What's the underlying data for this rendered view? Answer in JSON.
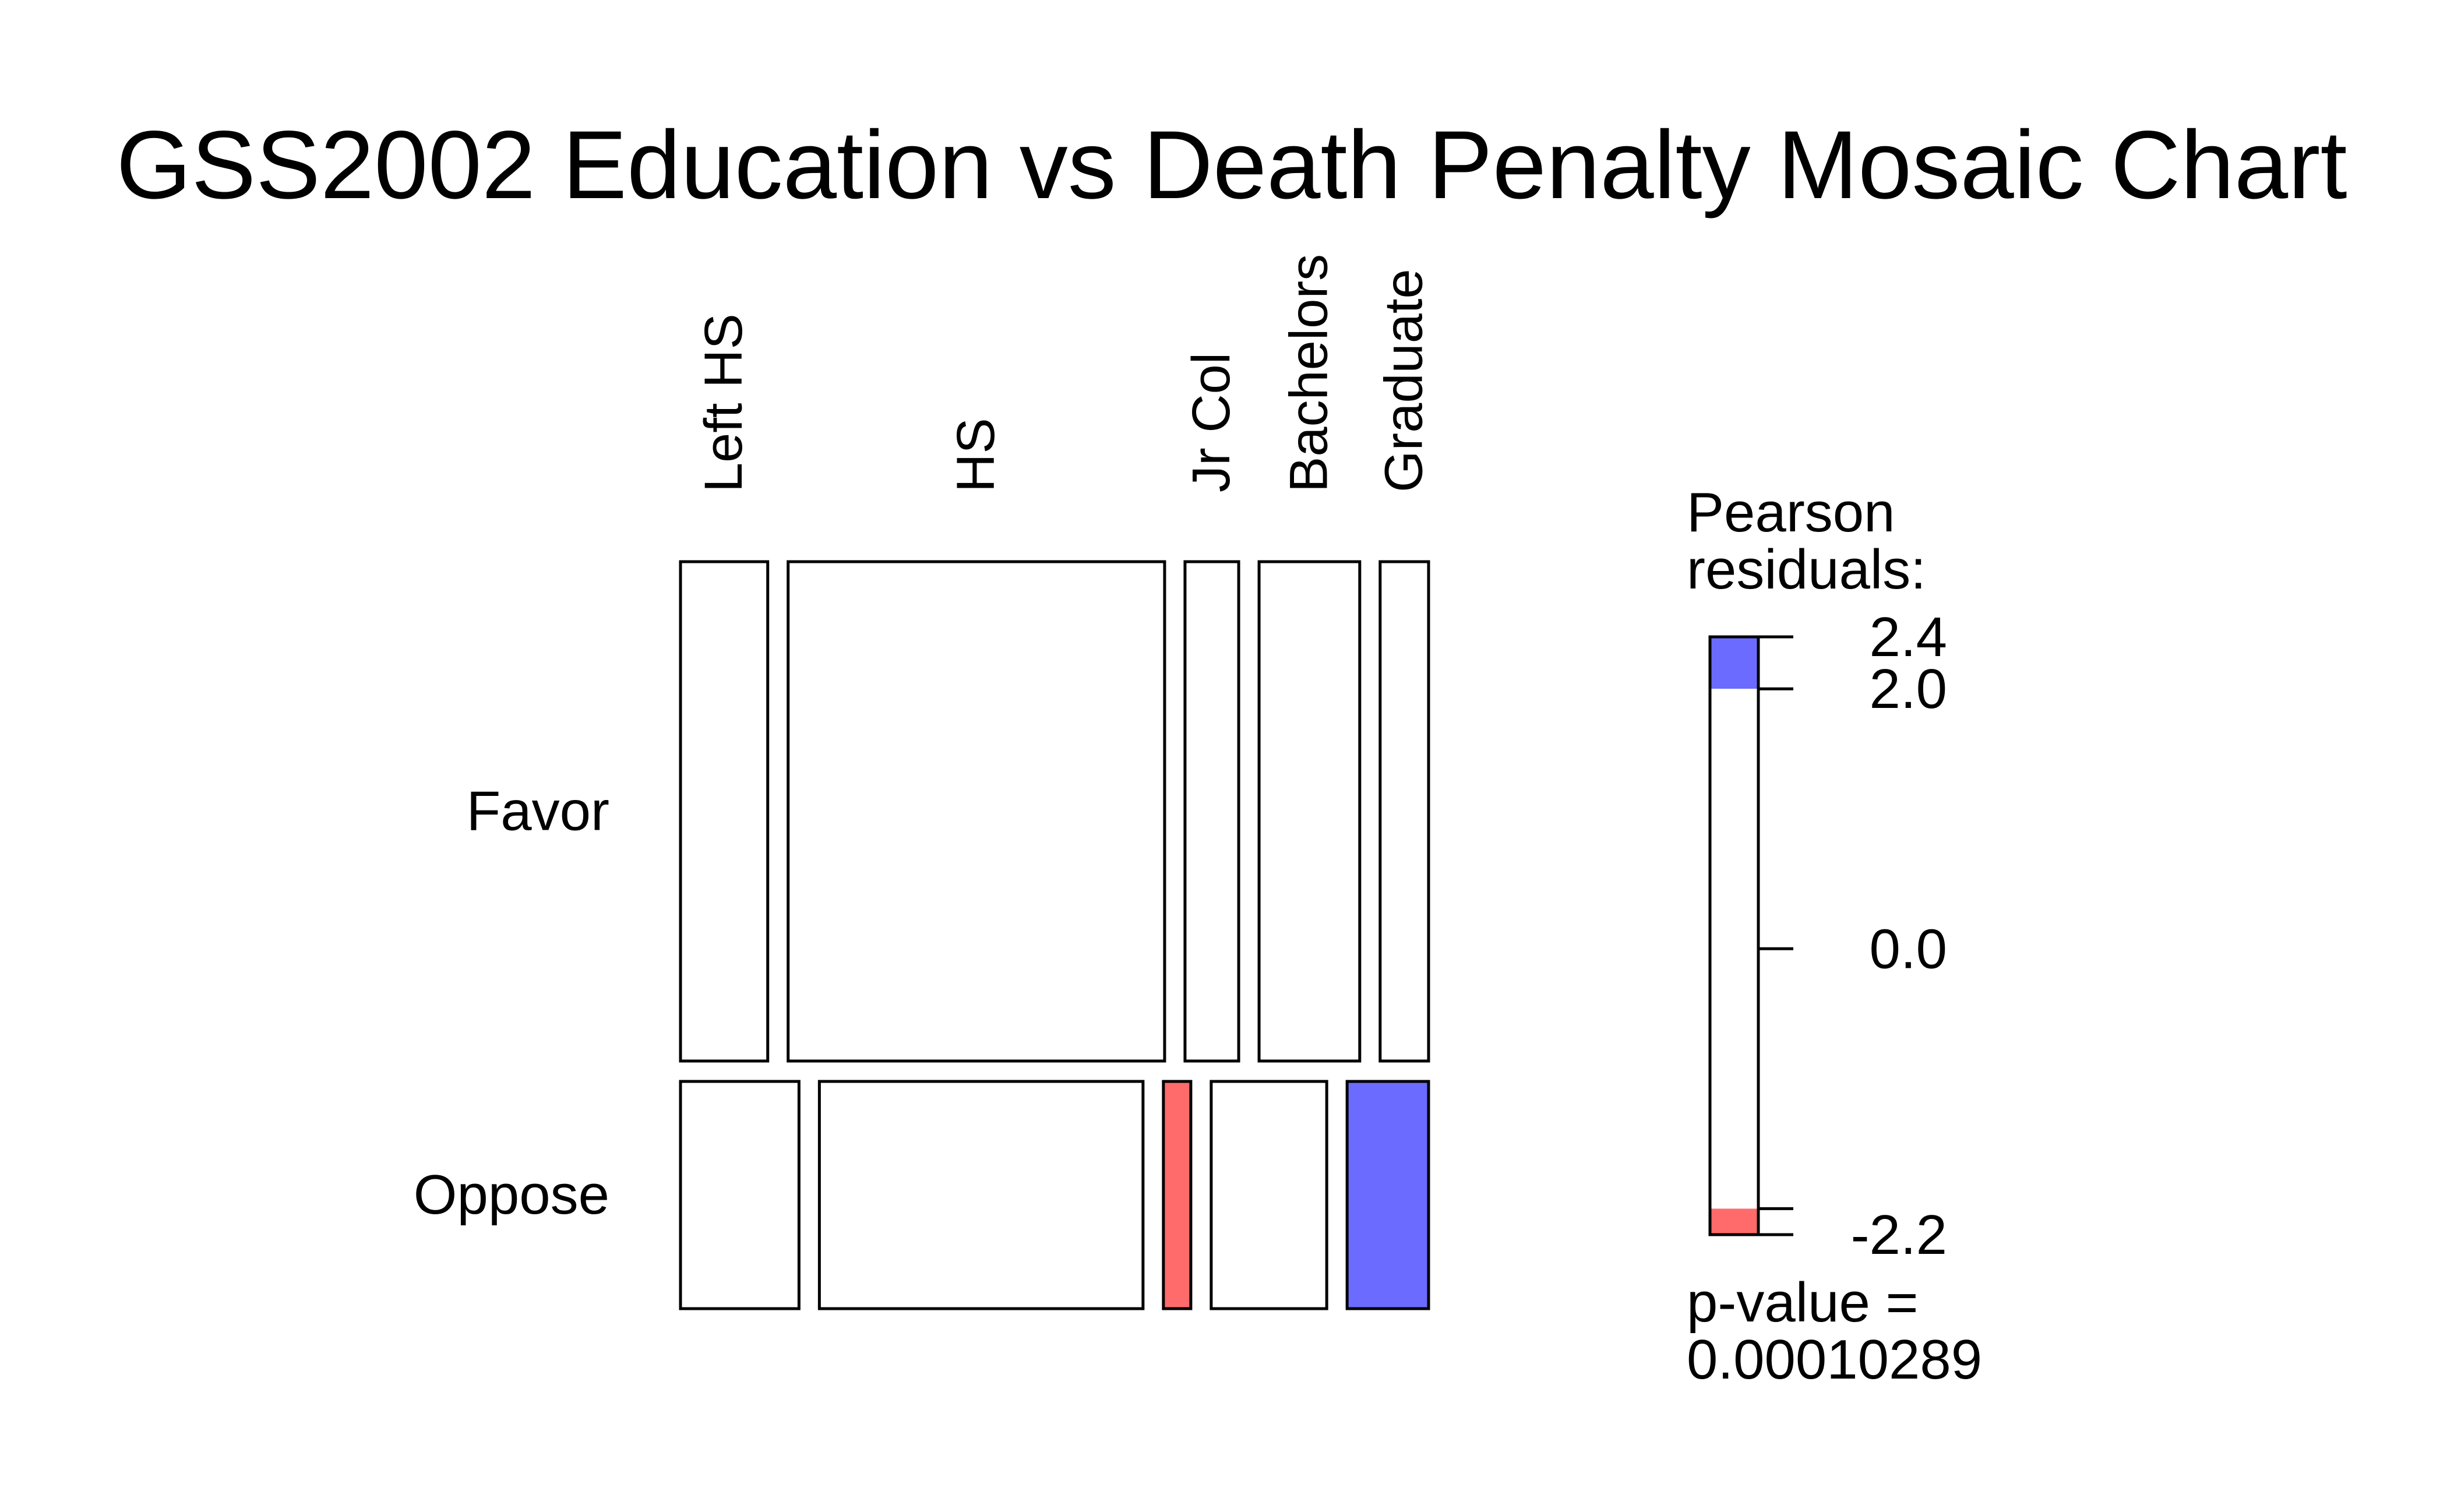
{
  "colors": {
    "positive": "#6b6bff",
    "negative": "#ff6b6b",
    "neutral": "#ffffff",
    "stroke": "#000000"
  },
  "chart_data": {
    "type": "mosaic",
    "title": "GSS2002 Education vs Death Penalty Mosaic Chart",
    "columns": [
      "Left HS",
      "HS",
      "Jr Col",
      "Bachelors",
      "Graduate"
    ],
    "rows": [
      "Favor",
      "Oppose"
    ],
    "column_fractions": [
      0.117,
      0.505,
      0.072,
      0.135,
      0.065
    ],
    "row_fractions_within_column": {
      "Favor": [
        0.69,
        0.69,
        0.69,
        0.69,
        0.69
      ]
    },
    "oppose_cells": [
      {
        "column": "Left HS",
        "width_fraction": 0.16,
        "shade": "neutral"
      },
      {
        "column": "HS",
        "width_fraction": 0.437,
        "shade": "neutral"
      },
      {
        "column": "Jr Col",
        "width_fraction": 0.037,
        "shade": "negative"
      },
      {
        "column": "Bachelors",
        "width_fraction": 0.156,
        "shade": "neutral"
      },
      {
        "column": "Graduate",
        "width_fraction": 0.11,
        "shade": "positive"
      }
    ],
    "favor_cells": [
      {
        "column": "Left HS",
        "shade": "neutral"
      },
      {
        "column": "HS",
        "shade": "neutral"
      },
      {
        "column": "Jr Col",
        "shade": "neutral"
      },
      {
        "column": "Bachelors",
        "shade": "neutral"
      },
      {
        "column": "Graduate",
        "shade": "neutral"
      }
    ],
    "legend": {
      "title_line1": "Pearson",
      "title_line2": "residuals:",
      "ticks": [
        "2.4",
        "2.0",
        "0.0",
        "-2.2"
      ],
      "tick_values": [
        2.4,
        2.0,
        0.0,
        -2.2
      ],
      "range": [
        -2.2,
        2.4
      ],
      "positive_threshold": 2.0,
      "negative_threshold": -2.0,
      "pvalue_line1": "p-value =",
      "pvalue_line2": "0.00010289"
    }
  }
}
